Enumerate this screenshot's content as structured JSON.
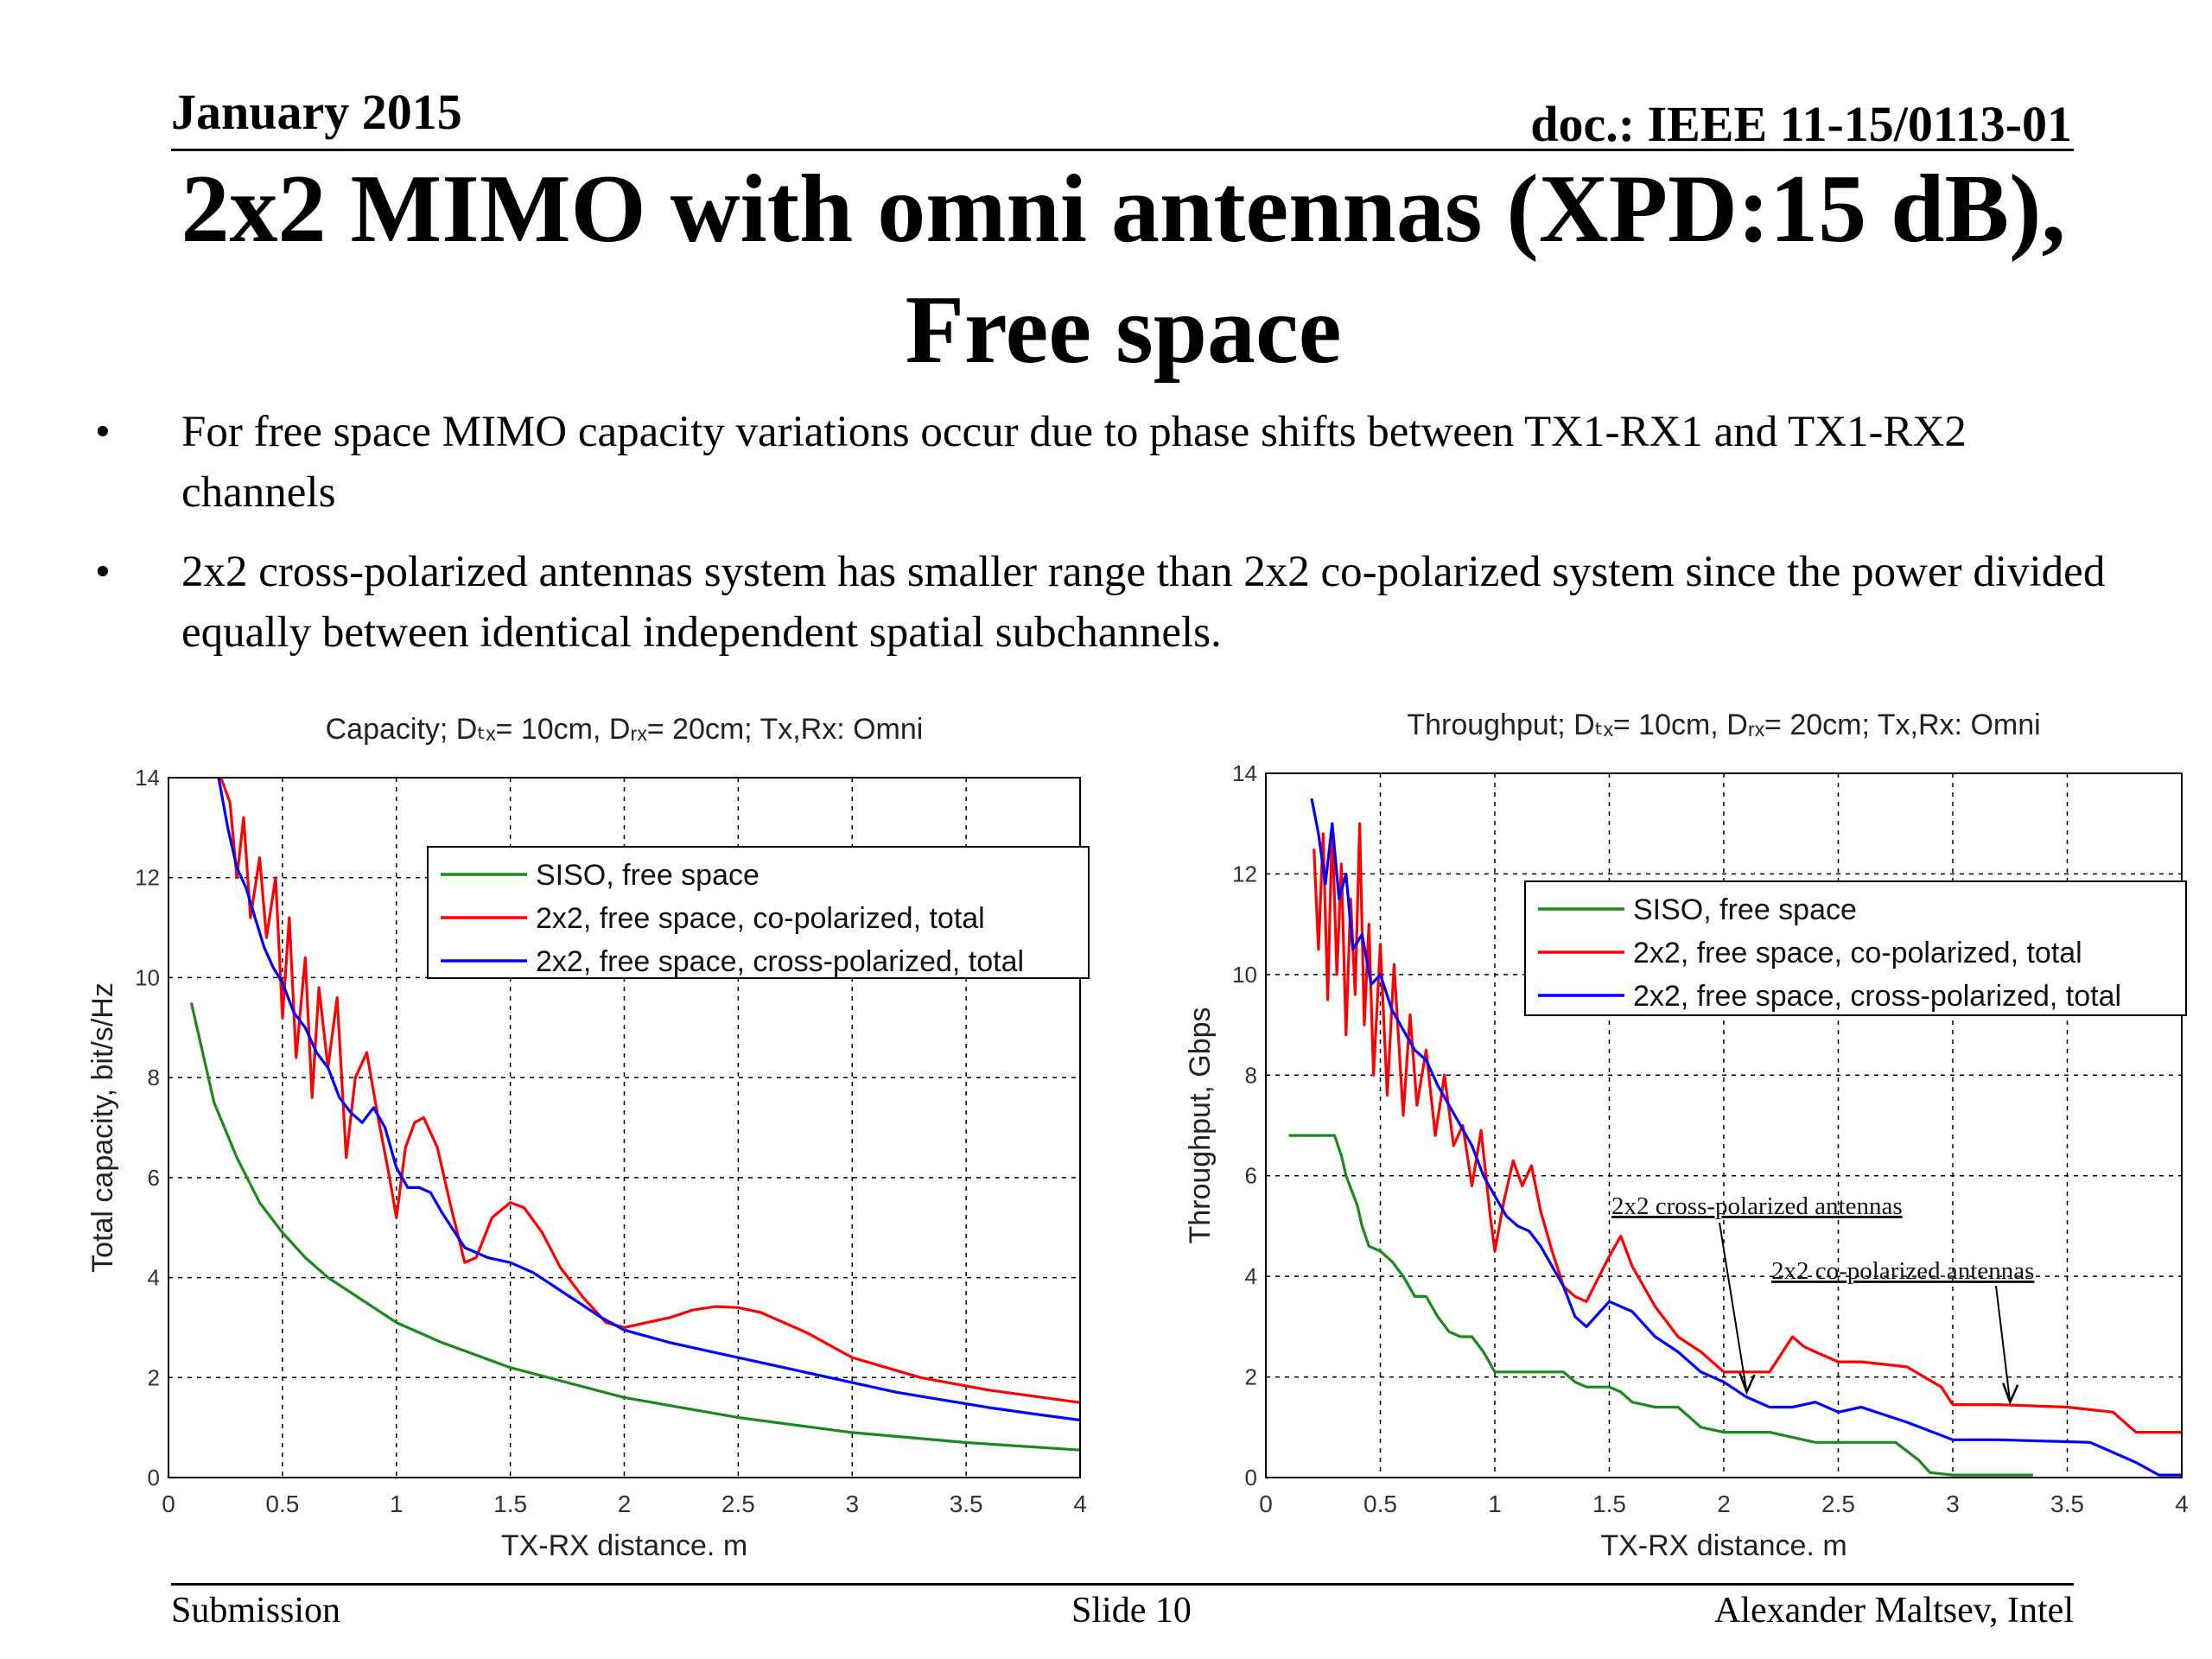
{
  "header": {
    "date": "January 2015",
    "doc": "doc.: IEEE 11-15/0113-01"
  },
  "title": {
    "line1": "2x2 MIMO with omni antennas (XPD:15 dB),",
    "line2": "Free space"
  },
  "bullets": [
    {
      "marker": "•",
      "text": "For free space MIMO capacity variations occur due to phase shifts between TX1-RX1 and TX1-RX2 channels"
    },
    {
      "marker": "•",
      "text": "2x2 cross-polarized antennas system has smaller range than 2x2 co-polarized system since the power divided equally between identical independent spatial subchannels."
    }
  ],
  "footer": {
    "left": "Submission",
    "center": "Slide 10",
    "right": "Alexander Maltsev, Intel"
  },
  "colors": {
    "siso": "#1a8a1a",
    "co": "#ff0000",
    "cross": "#0000ff"
  },
  "chart_data": [
    {
      "type": "line",
      "title": "Capacity; Dₜₓ= 10cm, Dᵣₓ= 20cm; Tx,Rx: Omni",
      "xlabel": "TX-RX distance, m",
      "ylabel": "Total capacity, bit/s/Hz",
      "xlim": [
        0,
        4
      ],
      "ylim": [
        0,
        14
      ],
      "xticks": [
        "0",
        "0.5",
        "1",
        "1.5",
        "2",
        "2.5",
        "3",
        "3.5",
        "4"
      ],
      "yticks": [
        "0",
        "2",
        "4",
        "6",
        "8",
        "10",
        "12",
        "14"
      ],
      "grid": true,
      "legend_position": "top-right",
      "series": [
        {
          "name": "SISO, free space",
          "color_key": "siso",
          "x": [
            0.1,
            0.2,
            0.3,
            0.4,
            0.5,
            0.6,
            0.7,
            0.8,
            1.0,
            1.2,
            1.5,
            2.0,
            2.5,
            3.0,
            3.5,
            4.0
          ],
          "y": [
            9.5,
            7.5,
            6.4,
            5.5,
            4.9,
            4.4,
            4.0,
            3.7,
            3.1,
            2.7,
            2.2,
            1.6,
            1.2,
            0.9,
            0.7,
            0.55
          ]
        },
        {
          "name": "2x2, free space, co-polarized, total",
          "color_key": "co",
          "x": [
            0.23,
            0.27,
            0.3,
            0.33,
            0.36,
            0.4,
            0.43,
            0.47,
            0.5,
            0.53,
            0.56,
            0.6,
            0.63,
            0.66,
            0.7,
            0.74,
            0.78,
            0.82,
            0.87,
            0.92,
            0.97,
            1.0,
            1.04,
            1.08,
            1.12,
            1.18,
            1.24,
            1.3,
            1.35,
            1.42,
            1.5,
            1.56,
            1.64,
            1.72,
            1.82,
            1.92,
            2.0,
            2.1,
            2.2,
            2.3,
            2.4,
            2.5,
            2.6,
            2.8,
            3.0,
            3.3,
            3.6,
            4.0
          ],
          "y": [
            14,
            13.5,
            12.0,
            13.2,
            11.2,
            12.4,
            10.8,
            12.0,
            9.2,
            11.2,
            8.4,
            10.4,
            7.6,
            9.8,
            8.2,
            9.6,
            6.4,
            8.0,
            8.5,
            7.2,
            6.0,
            5.2,
            6.6,
            7.1,
            7.2,
            6.6,
            5.4,
            4.3,
            4.4,
            5.2,
            5.5,
            5.4,
            4.9,
            4.2,
            3.6,
            3.1,
            3.0,
            3.1,
            3.2,
            3.35,
            3.42,
            3.4,
            3.3,
            2.9,
            2.4,
            2.0,
            1.75,
            1.5
          ]
        },
        {
          "name": "2x2, free space, cross-polarized, total",
          "color_key": "cross",
          "x": [
            0.22,
            0.26,
            0.3,
            0.34,
            0.38,
            0.42,
            0.46,
            0.5,
            0.55,
            0.6,
            0.65,
            0.7,
            0.75,
            0.8,
            0.85,
            0.9,
            0.95,
            1.0,
            1.05,
            1.1,
            1.15,
            1.2,
            1.3,
            1.4,
            1.5,
            1.6,
            1.7,
            1.8,
            1.9,
            2.0,
            2.2,
            2.4,
            2.6,
            2.8,
            3.0,
            3.2,
            3.4,
            3.6,
            3.8,
            4.0
          ],
          "y": [
            14,
            13.0,
            12.2,
            11.8,
            11.2,
            10.6,
            10.2,
            9.9,
            9.3,
            9.0,
            8.5,
            8.2,
            7.6,
            7.3,
            7.1,
            7.4,
            7.0,
            6.2,
            5.8,
            5.8,
            5.7,
            5.3,
            4.6,
            4.4,
            4.3,
            4.1,
            3.8,
            3.5,
            3.2,
            2.95,
            2.7,
            2.5,
            2.3,
            2.1,
            1.9,
            1.7,
            1.55,
            1.4,
            1.27,
            1.15
          ]
        }
      ]
    },
    {
      "type": "line",
      "title": "Throughput; Dₜₓ= 10cm, Dᵣₓ= 20cm; Tx,Rx: Omni",
      "xlabel": "TX-RX distance, m",
      "ylabel": "Throughput, Gbps",
      "xlim": [
        0,
        4
      ],
      "ylim": [
        0,
        14
      ],
      "xticks": [
        "0",
        "0.5",
        "1",
        "1.5",
        "2",
        "2.5",
        "3",
        "3.5",
        "4"
      ],
      "yticks": [
        "0",
        "2",
        "4",
        "6",
        "8",
        "10",
        "12",
        "14"
      ],
      "grid": true,
      "legend_position": "top-right",
      "annotations": [
        {
          "text": "2x2 cross-polarized antennas",
          "arrow_to": [
            2.1,
            1.7
          ]
        },
        {
          "text": "2x2 co-polarized antennas",
          "arrow_to": [
            3.25,
            1.5
          ]
        }
      ],
      "series": [
        {
          "name": "SISO, free space",
          "color_key": "siso",
          "x": [
            0.1,
            0.3,
            0.33,
            0.35,
            0.4,
            0.42,
            0.45,
            0.5,
            0.55,
            0.6,
            0.65,
            0.7,
            0.75,
            0.8,
            0.85,
            0.9,
            0.95,
            1.0,
            1.1,
            1.2,
            1.3,
            1.35,
            1.4,
            1.5,
            1.55,
            1.6,
            1.7,
            1.8,
            1.85,
            1.9,
            2.0,
            2.2,
            2.3,
            2.4,
            2.6,
            2.75,
            2.85,
            2.9,
            3.0,
            3.35
          ],
          "y": [
            6.8,
            6.8,
            6.4,
            6.0,
            5.4,
            5.0,
            4.6,
            4.5,
            4.3,
            4.0,
            3.6,
            3.6,
            3.2,
            2.9,
            2.8,
            2.8,
            2.5,
            2.1,
            2.1,
            2.1,
            2.1,
            1.9,
            1.8,
            1.8,
            1.7,
            1.5,
            1.4,
            1.4,
            1.2,
            1.0,
            0.9,
            0.9,
            0.8,
            0.7,
            0.7,
            0.7,
            0.35,
            0.1,
            0.05,
            0.05
          ]
        },
        {
          "name": "2x2, free space, co-polarized, total",
          "color_key": "co",
          "x": [
            0.21,
            0.23,
            0.25,
            0.27,
            0.29,
            0.31,
            0.33,
            0.35,
            0.37,
            0.39,
            0.41,
            0.43,
            0.45,
            0.47,
            0.5,
            0.53,
            0.56,
            0.6,
            0.63,
            0.66,
            0.7,
            0.74,
            0.78,
            0.82,
            0.86,
            0.9,
            0.94,
            0.98,
            1.0,
            1.04,
            1.08,
            1.12,
            1.16,
            1.2,
            1.25,
            1.3,
            1.35,
            1.4,
            1.5,
            1.55,
            1.6,
            1.7,
            1.8,
            1.9,
            2.0,
            2.2,
            2.3,
            2.35,
            2.4,
            2.5,
            2.6,
            2.8,
            2.95,
            3.0,
            3.2,
            3.5,
            3.7,
            3.8,
            4.0
          ],
          "y": [
            12.5,
            10.5,
            12.8,
            9.5,
            13.0,
            10.0,
            12.2,
            8.8,
            11.5,
            9.6,
            13.0,
            9.0,
            11.0,
            8.0,
            10.6,
            7.6,
            10.2,
            7.2,
            9.2,
            7.4,
            8.5,
            6.8,
            8.0,
            6.6,
            7.0,
            5.8,
            6.9,
            5.2,
            4.5,
            5.5,
            6.3,
            5.8,
            6.2,
            5.3,
            4.5,
            3.8,
            3.6,
            3.5,
            4.4,
            4.8,
            4.2,
            3.4,
            2.8,
            2.5,
            2.1,
            2.1,
            2.8,
            2.6,
            2.5,
            2.3,
            2.3,
            2.2,
            1.8,
            1.45,
            1.45,
            1.4,
            1.3,
            0.9,
            0.9
          ]
        },
        {
          "name": "2x2, free space, cross-polarized, total",
          "color_key": "cross",
          "x": [
            0.2,
            0.23,
            0.26,
            0.29,
            0.32,
            0.35,
            0.38,
            0.42,
            0.46,
            0.5,
            0.55,
            0.6,
            0.65,
            0.7,
            0.75,
            0.8,
            0.85,
            0.9,
            0.95,
            1.0,
            1.05,
            1.1,
            1.15,
            1.2,
            1.25,
            1.3,
            1.35,
            1.4,
            1.5,
            1.6,
            1.7,
            1.8,
            1.9,
            2.0,
            2.1,
            2.2,
            2.3,
            2.4,
            2.5,
            2.6,
            2.8,
            3.0,
            3.2,
            3.6,
            3.8,
            3.9,
            4.0
          ],
          "y": [
            13.5,
            12.8,
            11.8,
            13.0,
            11.5,
            12.0,
            10.5,
            10.8,
            9.8,
            10.0,
            9.3,
            8.9,
            8.5,
            8.3,
            7.8,
            7.4,
            7.0,
            6.6,
            6.0,
            5.6,
            5.2,
            5.0,
            4.9,
            4.6,
            4.2,
            3.8,
            3.2,
            3.0,
            3.5,
            3.3,
            2.8,
            2.5,
            2.1,
            1.9,
            1.6,
            1.4,
            1.4,
            1.5,
            1.3,
            1.4,
            1.1,
            0.75,
            0.75,
            0.7,
            0.3,
            0.05,
            0.05
          ]
        }
      ]
    }
  ]
}
